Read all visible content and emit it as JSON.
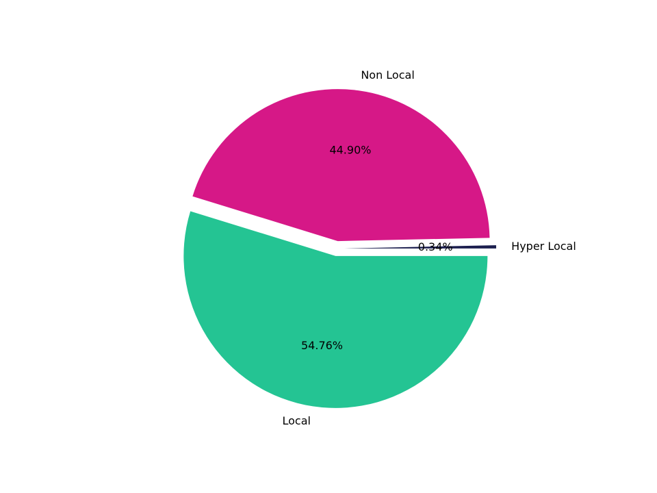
{
  "chart_data": {
    "type": "pie",
    "categories": [
      "Hyper Local",
      "Non Local",
      "Local"
    ],
    "values": [
      0.34,
      44.9,
      54.76
    ],
    "value_labels": [
      "0.34%",
      "44.90%",
      "54.76%"
    ],
    "colors": [
      "#1c1f4f",
      "#d61887",
      "#24c493"
    ]
  }
}
